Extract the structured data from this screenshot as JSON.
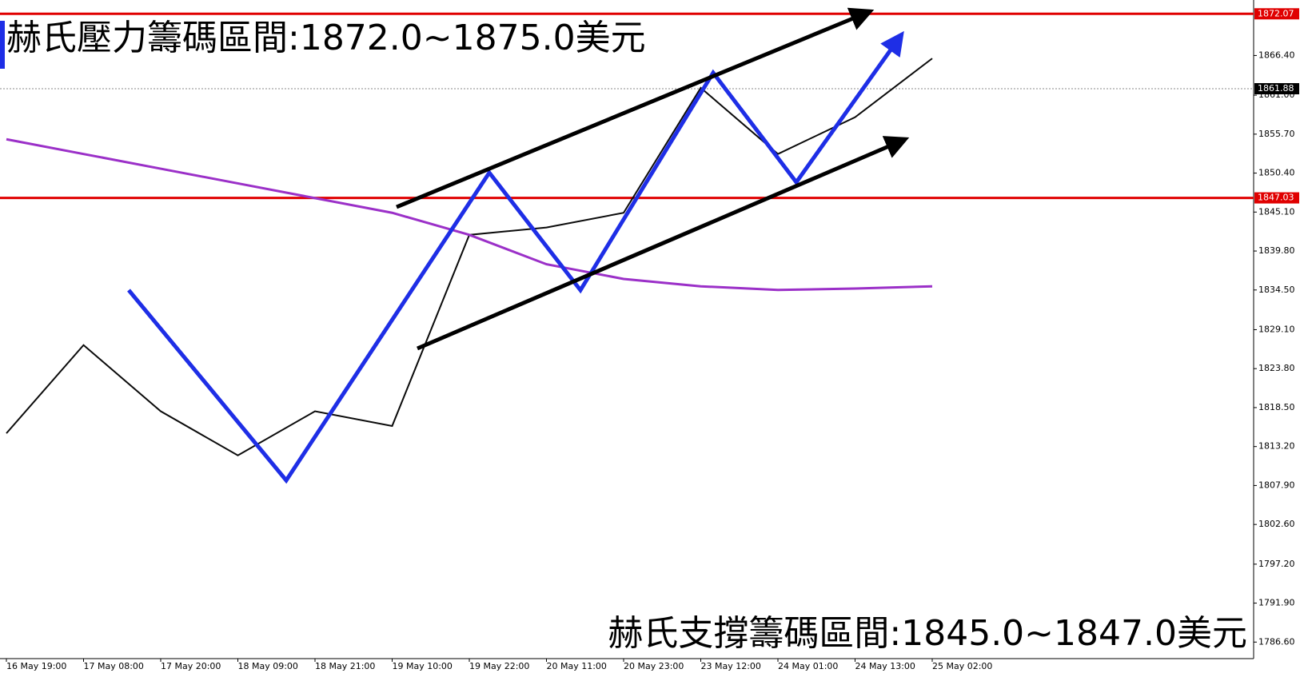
{
  "chart_data": {
    "type": "line",
    "annotations": [
      "赫氏壓力籌碼區間:1872.0~1875.0美元",
      "赫氏支撐籌碼區間:1845.0~1847.0美元"
    ],
    "x": [
      "16 May 19:00",
      "17 May 08:00",
      "17 May 20:00",
      "18 May 09:00",
      "18 May 21:00",
      "19 May 10:00",
      "19 May 22:00",
      "20 May 11:00",
      "20 May 23:00",
      "23 May 12:00",
      "24 May 01:00",
      "24 May 13:00",
      "25 May 02:00"
    ],
    "series": [
      {
        "color": "#0a0a0a",
        "values": [
          1815,
          1827,
          1818,
          1812,
          1818,
          1816,
          1842,
          1843,
          1845,
          1862,
          1853,
          1858,
          1866
        ]
      },
      {
        "color": "#9b30c8",
        "values": [
          1855,
          1853,
          1851,
          1849,
          1847,
          1845,
          1842,
          1838,
          1836,
          1835,
          1834.5,
          1834.7,
          1835
        ]
      }
    ],
    "ylim": [
      1784.35,
      1873.95
    ],
    "yticks": [
      {
        "value": 1866.4,
        "label": "1866.40"
      },
      {
        "value": 1861.0,
        "label": "1861.00"
      },
      {
        "value": 1855.7,
        "label": "1855.70"
      },
      {
        "value": 1850.4,
        "label": "1850.40"
      },
      {
        "value": 1845.1,
        "label": "1845.10"
      },
      {
        "value": 1839.8,
        "label": "1839.80"
      },
      {
        "value": 1834.5,
        "label": "1834.50"
      },
      {
        "value": 1829.1,
        "label": "1829.10"
      },
      {
        "value": 1823.8,
        "label": "1823.80"
      },
      {
        "value": 1818.5,
        "label": "1818.50"
      },
      {
        "value": 1813.2,
        "label": "1813.20"
      },
      {
        "value": 1807.9,
        "label": "1807.90"
      },
      {
        "value": 1802.6,
        "label": "1802.60"
      },
      {
        "value": 1797.2,
        "label": "1797.20"
      },
      {
        "value": 1791.9,
        "label": "1791.90"
      },
      {
        "value": 1786.6,
        "label": "1786.60"
      }
    ],
    "price_lines": [
      {
        "value": 1872.07,
        "color": "#e00000"
      },
      {
        "value": 1861.88,
        "color": "#000000"
      },
      {
        "value": 1847.03,
        "color": "#e00000"
      }
    ]
  }
}
